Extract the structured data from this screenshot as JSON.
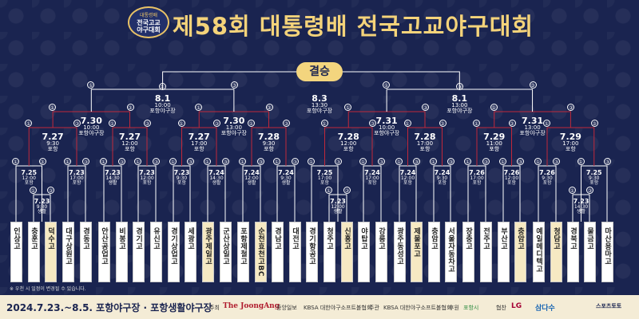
{
  "header": {
    "emblem_line1": "대통령배",
    "emblem_line2": "전국고교",
    "emblem_line3": "야구대회",
    "title": "제58회 대통령배 전국고교야구대회"
  },
  "final": {
    "label": "결승",
    "date": "8.3",
    "time": "13:30",
    "venue": "포항야구장"
  },
  "games": [
    {
      "id": "sf1",
      "date": "8.1",
      "time": "10:00",
      "venue": "포항야구장"
    },
    {
      "id": "sf2",
      "date": "8.1",
      "time": "13:00",
      "venue": "포항야구장"
    },
    {
      "id": "qf1",
      "date": "7.30",
      "time": "10:00",
      "venue": "포항야구장"
    },
    {
      "id": "qf2",
      "date": "7.30",
      "time": "13:00",
      "venue": "포항야구장"
    },
    {
      "id": "qf3",
      "date": "7.31",
      "time": "10:00",
      "venue": "포항야구장"
    },
    {
      "id": "qf4",
      "date": "7.31",
      "time": "13:00",
      "venue": "포항야구장"
    },
    {
      "id": "r16_1",
      "date": "7.27",
      "time": "9:30",
      "venue": "포항"
    },
    {
      "id": "r16_2",
      "date": "7.27",
      "time": "12:00",
      "venue": "포항"
    },
    {
      "id": "r16_3",
      "date": "7.27",
      "time": "17:00",
      "venue": "포항"
    },
    {
      "id": "r16_4",
      "date": "7.28",
      "time": "9:30",
      "venue": "포항"
    },
    {
      "id": "r16_5",
      "date": "7.28",
      "time": "12:00",
      "venue": "포항"
    },
    {
      "id": "r16_6",
      "date": "7.28",
      "time": "17:00",
      "venue": "포항"
    },
    {
      "id": "r16_7",
      "date": "7.29",
      "time": "11:00",
      "venue": "포항"
    },
    {
      "id": "r16_8",
      "date": "7.29",
      "time": "17:00",
      "venue": "포항"
    }
  ],
  "r1_games": [
    {
      "date": "7.25",
      "time": "12:00",
      "venue": "포항"
    },
    {
      "date": "7.23",
      "time": "9:30",
      "venue": "생활"
    },
    {
      "date": "7.23",
      "time": "17:00",
      "venue": "포항"
    },
    {
      "date": "7.23",
      "time": "14:30",
      "venue": "생활"
    },
    {
      "date": "7.23",
      "time": "12:00",
      "venue": "포항"
    },
    {
      "date": "7.23",
      "time": "9:30",
      "venue": "포항"
    },
    {
      "date": "7.24",
      "time": "14:30",
      "venue": "생활"
    },
    {
      "date": "7.24",
      "time": "12:00",
      "venue": "생활"
    },
    {
      "date": "7.24",
      "time": "9:30",
      "venue": "생활"
    },
    {
      "date": "7.25",
      "time": "17:00",
      "venue": "포항"
    },
    {
      "date": "7.23",
      "time": "12:00",
      "venue": "생활"
    },
    {
      "date": "7.24",
      "time": "17:00",
      "venue": "포항"
    },
    {
      "date": "7.24",
      "time": "12:00",
      "venue": "포항"
    },
    {
      "date": "7.24",
      "time": "9:30",
      "venue": "포항"
    },
    {
      "date": "7.26",
      "time": "17:00",
      "venue": "포항"
    },
    {
      "date": "7.26",
      "time": "12:00",
      "venue": "포항"
    },
    {
      "date": "7.26",
      "time": "9:30",
      "venue": "포항"
    },
    {
      "date": "7.23",
      "time": "14:30",
      "venue": "생활"
    },
    {
      "date": "7.25",
      "time": "9:30",
      "venue": "포항"
    }
  ],
  "teams": [
    "인상고",
    "충훈고",
    "덕수고",
    "대구상원고",
    "경동고",
    "안산공업고",
    "비봉고",
    "경기고",
    "유신고",
    "경기상업고",
    "세광고",
    "광주제일고",
    "군산상일고",
    "포항제철고",
    "순천효천고BC",
    "경남고",
    "대전고",
    "경기항공고",
    "청주고",
    "신흥고",
    "야탑고",
    "강릉고",
    "광주동성고",
    "제물포고",
    "충암고",
    "서울자동차고",
    "장충고",
    "전주고",
    "부산고",
    "충암고",
    "예일메디텍고",
    "청담고",
    "경북고",
    "물금고",
    "마산용마고"
  ],
  "round_marks": [
    "①",
    "③"
  ],
  "footer": {
    "note": "※ 우천 시 일정이 변경될 수 있습니다.",
    "dateline": "2024.7.23.~8.5. 포항야구장 · 포항생활야구장",
    "host_label": "주최",
    "host1": "The JoongAng",
    "host2": "중앙일보",
    "host3": "KBSA 대한야구소프트볼협회",
    "organizer_label": "주관",
    "organizer": "KBSA 대한야구소프트볼협회",
    "sponsor_label": "후원",
    "sponsor1": "포항시",
    "partner_label": "협찬",
    "partner1": "LG",
    "partner2": "삼다수",
    "partner3": "스포츠토토"
  },
  "colors": {
    "background": "#1a2450",
    "gold": "#f4d37a",
    "line_red": "#c0283a",
    "line_white": "#ffffff"
  }
}
